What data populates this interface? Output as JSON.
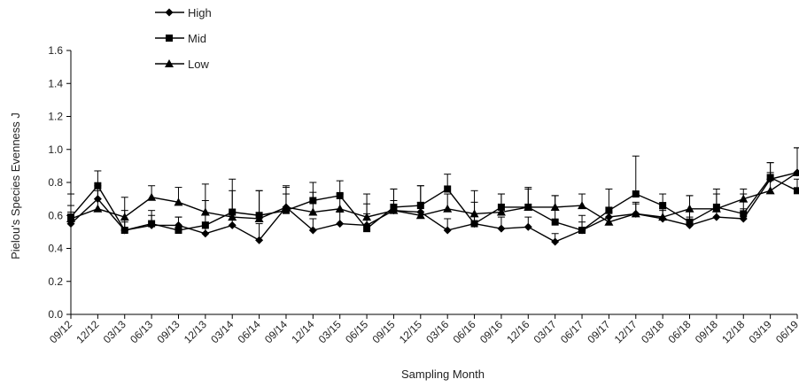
{
  "chart_data": {
    "type": "line",
    "xlabel": "Sampling Month",
    "ylabel": "Pielou's Species Evenness J",
    "ylim": [
      0,
      1.6
    ],
    "yticks": [
      "0.0",
      "0.2",
      "0.4",
      "0.6",
      "0.8",
      "1.0",
      "1.2",
      "1.4",
      "1.6"
    ],
    "grid": false,
    "legend_position": "top-left",
    "categories": [
      "09/12",
      "12/12",
      "03/13",
      "06/13",
      "09/13",
      "12/13",
      "03/14",
      "06/14",
      "09/14",
      "12/14",
      "03/15",
      "06/15",
      "09/15",
      "12/15",
      "03/16",
      "06/16",
      "09/16",
      "12/16",
      "03/17",
      "06/17",
      "09/17",
      "12/17",
      "03/18",
      "06/18",
      "09/18",
      "12/18",
      "03/19",
      "06/19"
    ],
    "series": [
      {
        "name": "High",
        "marker": "diamond",
        "color": "#000000",
        "values": [
          0.55,
          0.7,
          0.51,
          0.54,
          0.54,
          0.49,
          0.54,
          0.45,
          0.65,
          0.51,
          0.55,
          0.54,
          0.63,
          0.62,
          0.51,
          0.55,
          0.52,
          0.53,
          0.44,
          0.51,
          0.59,
          0.61,
          0.58,
          0.54,
          0.59,
          0.58,
          0.82,
          0.86
        ],
        "errors": [
          0.07,
          0.08,
          0.05,
          0.06,
          0.05,
          0.07,
          0.08,
          0.1,
          0.08,
          0.07,
          0.07,
          0.07,
          0.06,
          0.06,
          0.07,
          0.06,
          0.07,
          0.06,
          0.05,
          0.05,
          0.06,
          0.06,
          0.05,
          0.05,
          0.06,
          0.06,
          0.1,
          0.15
        ]
      },
      {
        "name": "Mid",
        "marker": "square",
        "color": "#000000",
        "values": [
          0.59,
          0.78,
          0.51,
          0.55,
          0.51,
          0.54,
          0.62,
          0.6,
          0.63,
          0.69,
          0.72,
          0.52,
          0.65,
          0.66,
          0.76,
          0.55,
          0.65,
          0.65,
          0.56,
          0.51,
          0.63,
          0.73,
          0.66,
          0.56,
          0.65,
          0.61,
          0.83,
          0.75
        ],
        "errors": [
          0.14,
          0.09,
          0.12,
          0.08,
          0.08,
          0.25,
          0.2,
          0.15,
          0.15,
          0.11,
          0.09,
          0.21,
          0.11,
          0.12,
          0.09,
          0.2,
          0.08,
          0.12,
          0.16,
          0.09,
          0.13,
          0.23,
          0.07,
          0.16,
          0.11,
          0.12,
          0.09,
          0.07
        ]
      },
      {
        "name": "Low",
        "marker": "triangle",
        "color": "#000000",
        "values": [
          0.58,
          0.64,
          0.59,
          0.71,
          0.68,
          0.62,
          0.59,
          0.58,
          0.65,
          0.62,
          0.64,
          0.59,
          0.63,
          0.6,
          0.64,
          0.61,
          0.62,
          0.65,
          0.65,
          0.66,
          0.56,
          0.61,
          0.59,
          0.64,
          0.64,
          0.7,
          0.75,
          0.86
        ],
        "errors": [
          0.08,
          0.11,
          0.12,
          0.07,
          0.09,
          0.07,
          0.16,
          0.17,
          0.12,
          0.12,
          0.09,
          0.08,
          0.13,
          0.18,
          0.09,
          0.07,
          0.11,
          0.11,
          0.07,
          0.07,
          0.06,
          0.07,
          0.05,
          0.08,
          0.09,
          0.06,
          0.11,
          0.15
        ]
      }
    ]
  }
}
